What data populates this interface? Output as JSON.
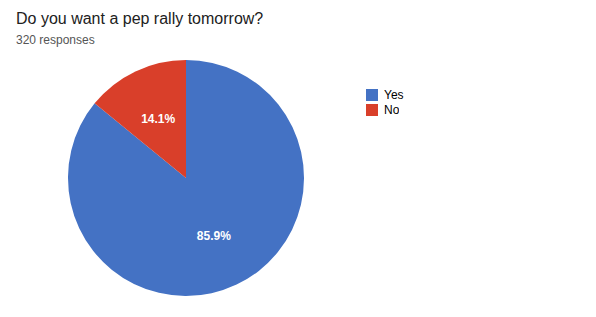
{
  "chart_data": {
    "type": "pie",
    "title": "Do you want a pep rally tomorrow?",
    "subtitle": "320 responses",
    "categories": [
      "Yes",
      "No"
    ],
    "values": [
      85.9,
      14.1
    ],
    "value_labels": [
      "85.9%",
      "14.1%"
    ],
    "colors": [
      "#4472C4",
      "#D93F2A"
    ],
    "data_labels": true,
    "legend": "right"
  }
}
